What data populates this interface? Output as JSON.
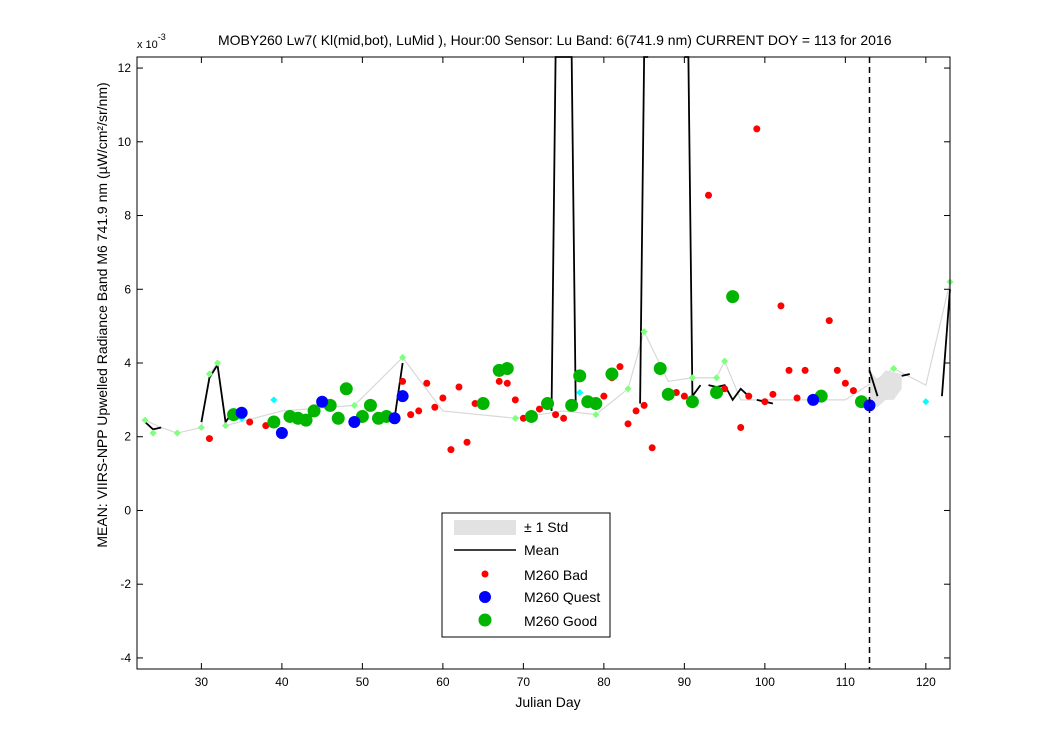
{
  "chart_data": {
    "type": "scatter",
    "title": "MOBY260   Lw7( Kl(mid,bot), LuMid ),   Hour:00 Sensor: Lu Band: 6(741.9 nm)   CURRENT DOY = 113 for 2016",
    "xlabel": "Julian Day",
    "ylabel": "MEAN: VIIRS-NPP Upwelled Radiance Band M6 741.9 nm (µW/cm²/sr/nm)",
    "y_multiplier_label": "x 10",
    "y_multiplier_exp": "-3",
    "xlim": [
      22,
      123
    ],
    "ylim": [
      -4.3,
      12.3
    ],
    "x_ticks": [
      30,
      40,
      50,
      60,
      70,
      80,
      90,
      100,
      110,
      120
    ],
    "y_ticks": [
      -4,
      -2,
      0,
      2,
      4,
      6,
      8,
      10,
      12
    ],
    "current_doy": 113,
    "legend": {
      "placement": "bottom-center",
      "entries": [
        "± 1 Std",
        "Mean",
        "M260 Bad",
        "M260 Quest",
        "M260 Good"
      ]
    },
    "colors": {
      "bad": "#ff0000",
      "quest": "#0000ff",
      "good": "#00b400",
      "std": "#e2e2e2",
      "mean": "#000000",
      "light_green": "#7fff7f",
      "cyan": "#00ffff",
      "light_line": "#d8d8d8"
    },
    "series": [
      {
        "name": "M260 Bad",
        "x": [
          31,
          36,
          38,
          53,
          55,
          56,
          57,
          58,
          59,
          60,
          61,
          62,
          63,
          64,
          67,
          68,
          69,
          70,
          72,
          74,
          75,
          78,
          80,
          81,
          82,
          83,
          84,
          85,
          86,
          89,
          90,
          93,
          95,
          97,
          98,
          99,
          100,
          101,
          102,
          103,
          104,
          105,
          107,
          108,
          109,
          110,
          111
        ],
        "y": [
          1.95,
          2.4,
          2.3,
          2.55,
          3.5,
          2.6,
          2.7,
          3.45,
          2.8,
          3.05,
          1.65,
          3.35,
          1.85,
          2.9,
          3.5,
          3.45,
          3.0,
          2.5,
          2.75,
          2.6,
          2.5,
          2.9,
          3.1,
          3.6,
          3.9,
          2.35,
          2.7,
          2.85,
          1.7,
          3.2,
          3.1,
          8.55,
          3.3,
          2.25,
          3.1,
          10.35,
          2.95,
          3.15,
          5.55,
          3.8,
          3.05,
          3.8,
          3.1,
          5.15,
          3.8,
          3.45,
          3.25
        ]
      },
      {
        "name": "M260 Quest",
        "x": [
          35,
          40,
          45,
          49,
          54,
          55,
          106,
          113
        ],
        "y": [
          2.65,
          2.1,
          2.95,
          2.4,
          2.5,
          3.1,
          3.0,
          2.85
        ]
      },
      {
        "name": "M260 Good",
        "x": [
          34,
          39,
          41,
          42,
          43,
          44,
          46,
          47,
          48,
          50,
          51,
          52,
          53,
          65,
          67,
          68,
          71,
          73,
          76,
          77,
          78,
          79,
          81,
          87,
          88,
          91,
          94,
          96,
          107,
          112
        ],
        "y": [
          2.6,
          2.4,
          2.55,
          2.5,
          2.45,
          2.7,
          2.85,
          2.5,
          3.3,
          2.55,
          2.85,
          2.5,
          2.55,
          2.9,
          3.8,
          3.85,
          2.55,
          2.9,
          2.85,
          3.65,
          2.95,
          2.9,
          3.7,
          3.85,
          3.15,
          2.95,
          3.2,
          5.8,
          3.1,
          2.95
        ]
      },
      {
        "name": "light green",
        "x": [
          23,
          24,
          27,
          30,
          31,
          32,
          33,
          49,
          55,
          69,
          79,
          83,
          85,
          91,
          94,
          95,
          116,
          123
        ],
        "y": [
          2.45,
          2.1,
          2.1,
          2.25,
          3.7,
          4.0,
          2.3,
          2.85,
          4.15,
          2.5,
          2.6,
          3.3,
          4.85,
          3.6,
          3.6,
          4.05,
          3.85,
          6.2
        ]
      },
      {
        "name": "cyan",
        "x": [
          35,
          39,
          77,
          120
        ],
        "y": [
          2.5,
          3.0,
          3.2,
          2.95
        ]
      }
    ],
    "mean_segments": [
      {
        "x": [
          23,
          24,
          25
        ],
        "y": [
          2.4,
          2.2,
          2.25
        ]
      },
      {
        "x": [
          30,
          31,
          32,
          33,
          34
        ],
        "y": [
          2.4,
          3.6,
          3.95,
          2.4,
          2.7
        ]
      },
      {
        "x": [
          54,
          55
        ],
        "y": [
          2.5,
          4.0
        ]
      },
      {
        "x": [
          73.5,
          74,
          74.5,
          75.5,
          76,
          76.5
        ],
        "y": [
          2.7,
          12.3,
          12.3,
          12.3,
          12.3,
          2.9
        ]
      },
      {
        "x": [
          84.5,
          85,
          85.5
        ],
        "y": [
          2.9,
          12.3,
          12.3
        ]
      },
      {
        "x": [
          90,
          90.5,
          91,
          92
        ],
        "y": [
          12.3,
          12.3,
          3.1,
          3.4
        ]
      },
      {
        "x": [
          93,
          94,
          95,
          96,
          97,
          98
        ],
        "y": [
          3.4,
          3.35,
          3.4,
          3.0,
          3.3,
          3.1
        ]
      },
      {
        "x": [
          99,
          100,
          101
        ],
        "y": [
          3.0,
          2.95,
          2.9
        ]
      },
      {
        "x": [
          113,
          114
        ],
        "y": [
          3.8,
          3.1
        ]
      },
      {
        "x": [
          117,
          118
        ],
        "y": [
          3.65,
          3.7
        ]
      },
      {
        "x": [
          122,
          123
        ],
        "y": [
          3.1,
          6.0
        ]
      }
    ],
    "std_band": {
      "x": [
        113,
        114,
        115,
        116,
        117
      ],
      "upper": [
        3.8,
        3.55,
        3.8,
        3.75,
        3.7
      ],
      "lower": [
        3.0,
        2.8,
        3.0,
        3.0,
        3.3
      ]
    },
    "light_line": {
      "x": [
        23,
        25,
        27,
        30,
        31,
        32,
        33,
        40,
        49,
        55,
        60,
        69,
        75,
        79,
        83,
        85,
        88,
        91,
        94,
        95,
        97,
        110,
        116,
        120,
        123
      ],
      "y": [
        2.45,
        2.25,
        2.1,
        2.25,
        3.7,
        4.0,
        2.3,
        2.7,
        2.85,
        4.15,
        2.7,
        2.5,
        2.7,
        2.6,
        3.3,
        4.85,
        3.5,
        3.6,
        3.6,
        4.05,
        3.0,
        3.0,
        3.85,
        3.4,
        6.2
      ]
    }
  }
}
